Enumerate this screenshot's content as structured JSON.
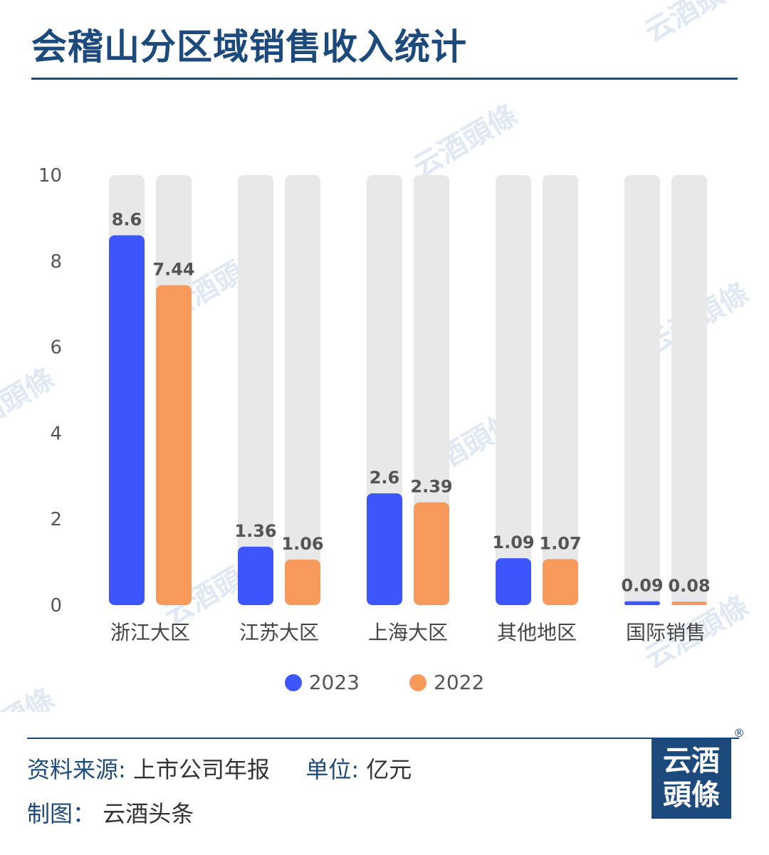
{
  "title": "会稽山分区域销售收入统计",
  "watermark_text": "云酒頭條",
  "chart_data": {
    "type": "bar",
    "categories": [
      "浙江大区",
      "江苏大区",
      "上海大区",
      "其他地区",
      "国际销售"
    ],
    "series": [
      {
        "name": "2023",
        "values": [
          8.6,
          1.36,
          2.6,
          1.09,
          0.09
        ],
        "value_labels": [
          "8.6",
          "1.36",
          "2.6",
          "1.09",
          "0.09"
        ],
        "color": "#3d55fc"
      },
      {
        "name": "2022",
        "values": [
          7.44,
          1.06,
          2.39,
          1.07,
          0.08
        ],
        "value_labels": [
          "7.44",
          "1.06",
          "2.39",
          "1.07",
          "0.08"
        ],
        "color": "#f89a5c"
      }
    ],
    "ylim": [
      0,
      10
    ],
    "yticks": [
      0,
      2,
      4,
      6,
      8,
      10
    ],
    "background_track_color": "#e8e8e8",
    "legend_position": "bottom",
    "grid": false
  },
  "footer": {
    "source_label": "资料来源:",
    "source_value": "上市公司年报",
    "unit_label": "单位:",
    "unit_value": "亿元",
    "made_by_label": "制图：",
    "made_by_value": "云酒头条"
  },
  "logo": {
    "line1": "云酒",
    "line2": "頭條",
    "registered_mark": "®"
  },
  "colors": {
    "brand": "#1c4a7c"
  }
}
